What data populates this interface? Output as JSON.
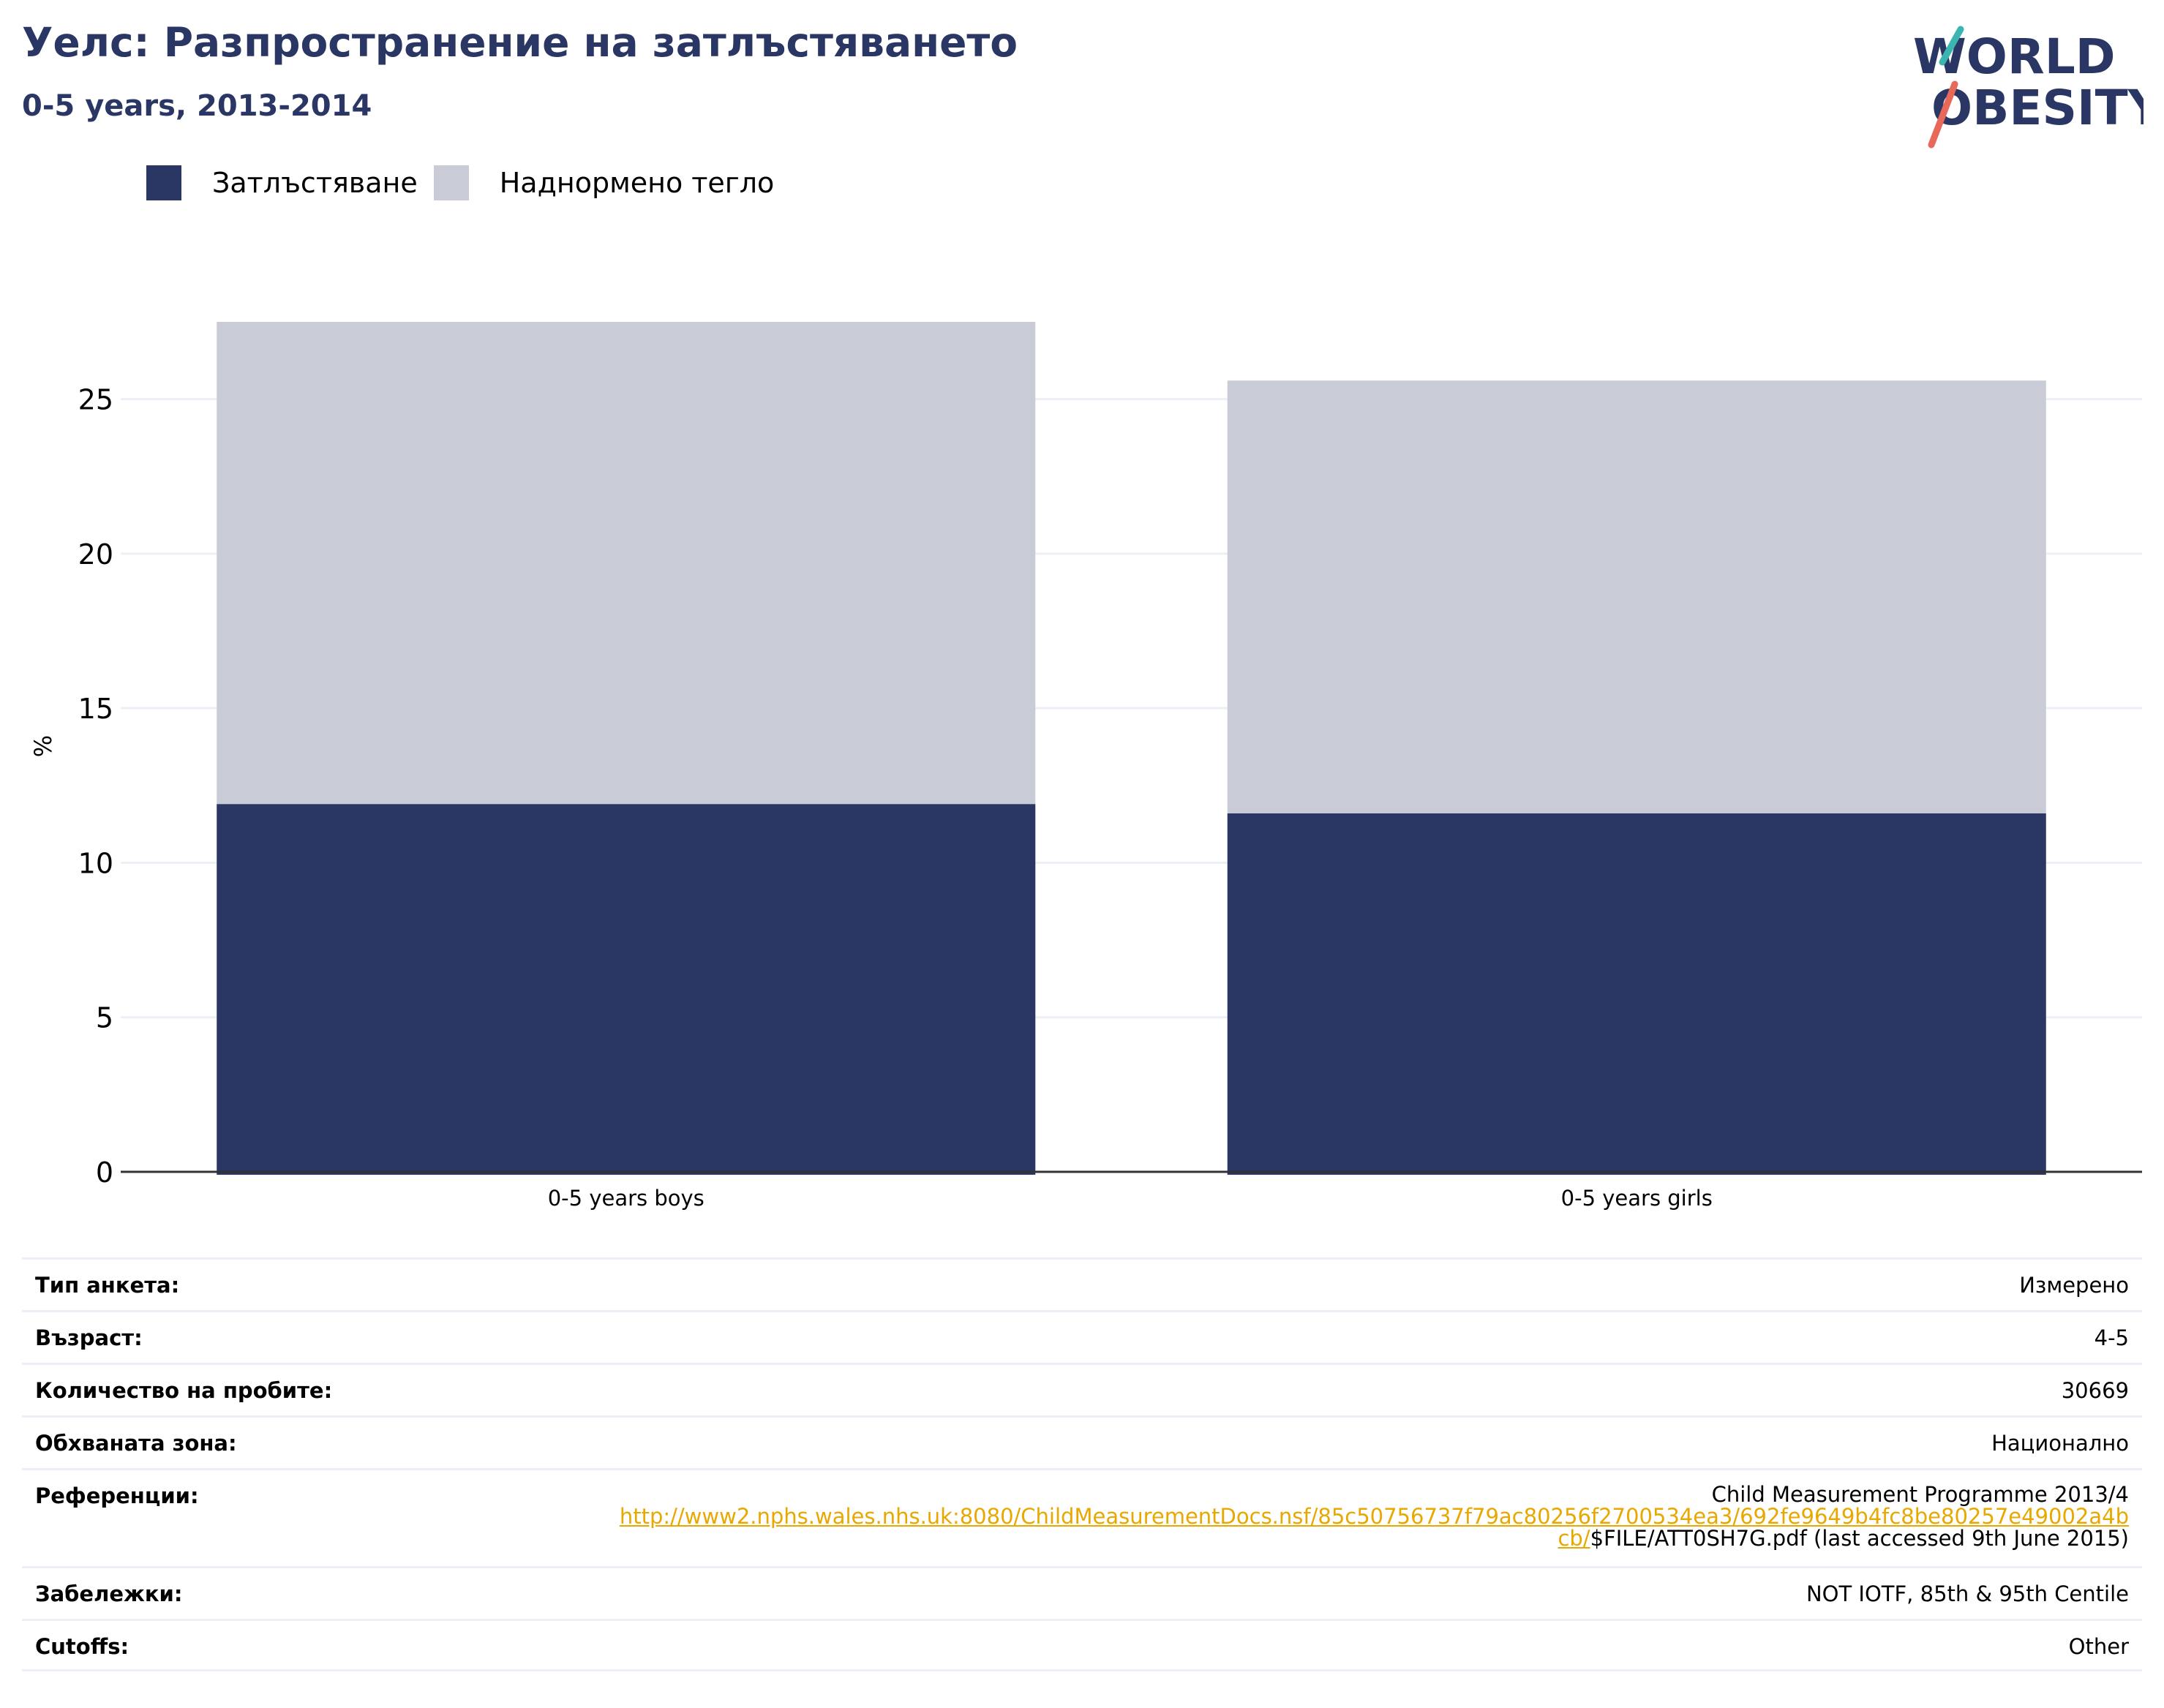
{
  "header": {
    "title": "Уелс: Разпространение на затлъстяването",
    "subtitle": "0-5 years, 2013-2014"
  },
  "logo": {
    "line1": "WORLD",
    "line2": "OBESITY"
  },
  "colors": {
    "obesity": "#2a3664",
    "overweight": "#c9cbd7",
    "title": "#2a3664",
    "link": "#e8a800"
  },
  "chart_data": {
    "type": "bar",
    "stacked": true,
    "categories": [
      "0-5 years boys",
      "0-5 years girls"
    ],
    "series": [
      {
        "name": "Затлъстяване",
        "values": [
          11.9,
          11.6
        ]
      },
      {
        "name": "Наднормено тегло",
        "values": [
          15.6,
          14.0
        ]
      }
    ],
    "ylabel": "%",
    "ylim": [
      0,
      27.5
    ],
    "yticks": [
      "0",
      "5",
      "10",
      "15",
      "20",
      "25"
    ],
    "grid": true,
    "legend": "top-left"
  },
  "info": {
    "rows": [
      {
        "label": "Тип анкета:",
        "value": "Измерено"
      },
      {
        "label": "Възраст:",
        "value": "4-5"
      },
      {
        "label": "Количество на пробите:",
        "value": "30669"
      },
      {
        "label": "Обхваната зона:",
        "value": "Национално"
      },
      {
        "label": "Референции:",
        "value_line1": "Child Measurement Programme 2013/4",
        "link_a": "http://www2.nphs.wales.nhs.uk:8080/ChildMeasurementDocs.nsf/85c50756737f79ac80256f2700534ea3/692fe9649b4fc8be80257e49002a4b",
        "link_b": "cb/",
        "value_tail": "$FILE/ATT0SH7G.pdf (last accessed 9th June 2015)"
      },
      {
        "label": "Забележки:",
        "value": "NOT IOTF, 85th & 95th Centile"
      },
      {
        "label": "Cutoffs:",
        "value": "Other"
      }
    ]
  }
}
